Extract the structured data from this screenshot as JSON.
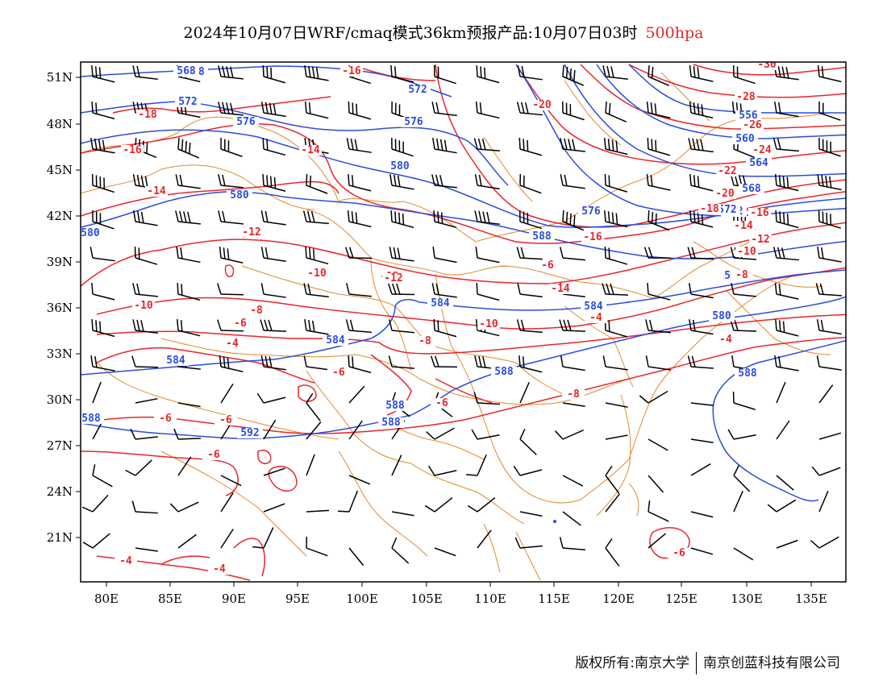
{
  "title": {
    "main": "2024年10月07日WRF/cmaq模式36km预报产品:10月07日03时",
    "level": "500hpa"
  },
  "footer": {
    "left": "版权所有:南京大学",
    "right": "南京创蓝科技有限公司"
  },
  "axes": {
    "lon_ticks": [
      "80E",
      "85E",
      "90E",
      "95E",
      "100E",
      "105E",
      "110E",
      "115E",
      "120E",
      "125E",
      "130E",
      "135E"
    ],
    "lat_ticks": [
      "51N",
      "48N",
      "45N",
      "42N",
      "39N",
      "36N",
      "33N",
      "30N",
      "27N",
      "24N",
      "21N"
    ]
  },
  "colors": {
    "height_contour": "#2a4de0",
    "temperature_contour": "#e8262a",
    "boundary": "#e08a2e",
    "wind_barb": "#000000",
    "level_label": "#e8262a"
  },
  "height_labels": [
    "568",
    "572",
    "572",
    "576",
    "576",
    "580",
    "580",
    "580",
    "576",
    "588",
    "584",
    "584",
    "584",
    "584",
    "588",
    "588",
    "588",
    "588",
    "592",
    "588",
    "580",
    "584",
    "556",
    "560",
    "564",
    "568",
    "572",
    "572",
    "568"
  ],
  "temperature_labels": [
    "-16",
    "-18",
    "-16",
    "-14",
    "-14",
    "-12",
    "-10",
    "-12",
    "-10",
    "-8",
    "-6",
    "-4",
    "-6",
    "-8",
    "-10",
    "-6",
    "-8",
    "-6",
    "-6",
    "-6",
    "-4",
    "-4",
    "-4",
    "-4",
    "-6",
    "-20",
    "-30",
    "-28",
    "-26",
    "-24",
    "-22",
    "-20",
    "-18",
    "-16",
    "-16",
    "-14",
    "-12",
    "-10",
    "-8",
    "-14",
    "-12",
    "-6"
  ]
}
